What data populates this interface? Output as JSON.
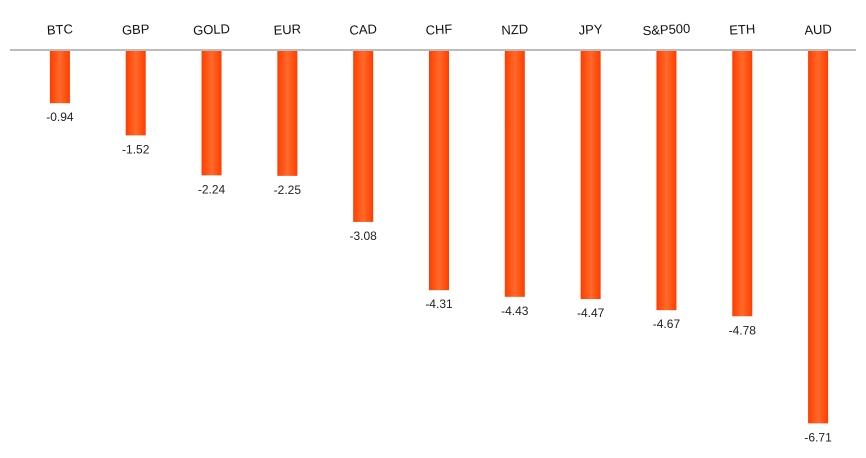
{
  "chart_data": {
    "type": "bar",
    "orientation": "vertical",
    "categories": [
      "BTC",
      "GBP",
      "GOLD",
      "EUR",
      "CAD",
      "CHF",
      "NZD",
      "JPY",
      "S&P500",
      "ETH",
      "AUD"
    ],
    "values": [
      -0.94,
      -1.52,
      -2.24,
      -2.25,
      -3.08,
      -4.31,
      -4.43,
      -4.47,
      -4.67,
      -4.78,
      -6.71
    ],
    "value_labels": [
      "-0.94",
      "-1.52",
      "-2.24",
      "-2.25",
      "-3.08",
      "-4.31",
      "-4.43",
      "-4.47",
      "-4.67",
      "-4.78",
      "-6.71"
    ],
    "title": "",
    "xlabel": "",
    "ylabel": "",
    "ylim": [
      -7.1,
      0
    ],
    "category_axis_position": "top",
    "grid": false,
    "legend": "none",
    "colors": {
      "bar": "#ff3d00",
      "bar_highlight": "#ff6a2a",
      "axis": "#a6a6a6"
    }
  }
}
